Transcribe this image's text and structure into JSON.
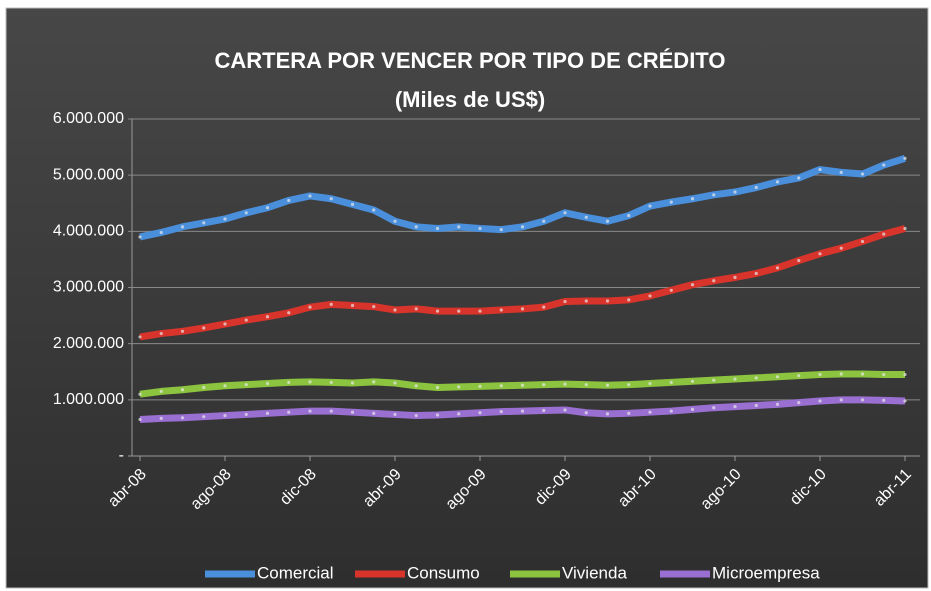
{
  "chart_data": {
    "type": "line",
    "title": "CARTERA POR VENCER POR TIPO DE CRÉDITO",
    "subtitle": "(Miles de US$)",
    "categories": [
      "abr-08",
      null,
      null,
      null,
      "ago-08",
      null,
      null,
      null,
      "dic-08",
      null,
      null,
      null,
      "abr-09",
      null,
      null,
      null,
      "ago-09",
      null,
      null,
      null,
      "dic-09",
      null,
      null,
      null,
      "abr-10",
      null,
      null,
      null,
      "ago-10",
      null,
      null,
      null,
      "dic-10",
      null,
      null,
      null,
      "abr-11"
    ],
    "series": [
      {
        "name": "Comercial",
        "color": "#4a8fdc",
        "values": [
          3900000,
          3980000,
          4080000,
          4150000,
          4220000,
          4330000,
          4420000,
          4550000,
          4630000,
          4580000,
          4480000,
          4380000,
          4180000,
          4080000,
          4050000,
          4080000,
          4050000,
          4030000,
          4080000,
          4180000,
          4330000,
          4250000,
          4180000,
          4280000,
          4450000,
          4520000,
          4580000,
          4650000,
          4700000,
          4780000,
          4880000,
          4950000,
          5100000,
          5050000,
          5020000,
          5180000,
          5300000
        ]
      },
      {
        "name": "Consumo",
        "color": "#d8342b",
        "values": [
          2120000,
          2180000,
          2220000,
          2280000,
          2350000,
          2420000,
          2480000,
          2550000,
          2650000,
          2700000,
          2680000,
          2660000,
          2600000,
          2620000,
          2580000,
          2580000,
          2580000,
          2600000,
          2620000,
          2650000,
          2750000,
          2760000,
          2760000,
          2780000,
          2850000,
          2950000,
          3050000,
          3120000,
          3180000,
          3250000,
          3350000,
          3480000,
          3600000,
          3700000,
          3820000,
          3950000,
          4050000
        ]
      },
      {
        "name": "Vivienda",
        "color": "#8cc43f",
        "values": [
          1100000,
          1150000,
          1180000,
          1220000,
          1250000,
          1270000,
          1290000,
          1310000,
          1320000,
          1310000,
          1300000,
          1320000,
          1300000,
          1250000,
          1220000,
          1230000,
          1240000,
          1250000,
          1260000,
          1270000,
          1280000,
          1270000,
          1260000,
          1270000,
          1290000,
          1310000,
          1330000,
          1350000,
          1370000,
          1390000,
          1410000,
          1430000,
          1450000,
          1460000,
          1460000,
          1450000,
          1450000
        ]
      },
      {
        "name": "Microempresa",
        "color": "#9a6fd2",
        "values": [
          650000,
          670000,
          680000,
          700000,
          720000,
          740000,
          760000,
          780000,
          800000,
          800000,
          780000,
          760000,
          740000,
          720000,
          730000,
          750000,
          770000,
          790000,
          800000,
          810000,
          820000,
          770000,
          750000,
          760000,
          780000,
          800000,
          830000,
          860000,
          880000,
          900000,
          920000,
          950000,
          980000,
          1000000,
          1000000,
          990000,
          980000
        ]
      }
    ],
    "ylim": [
      0,
      6000000
    ],
    "yticks": [
      {
        "value": 0,
        "label": "-"
      },
      {
        "value": 1000000,
        "label": "1.000.000"
      },
      {
        "value": 2000000,
        "label": "2.000.000"
      },
      {
        "value": 3000000,
        "label": "3.000.000"
      },
      {
        "value": 4000000,
        "label": "4.000.000"
      },
      {
        "value": 5000000,
        "label": "5.000.000"
      },
      {
        "value": 6000000,
        "label": "6.000.000"
      }
    ],
    "grid": true,
    "legend": "bottom"
  }
}
